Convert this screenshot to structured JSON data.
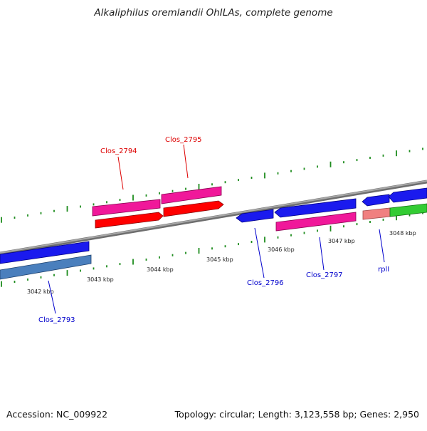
{
  "title": "Alkaliphilus oremlandii OhILAs, complete genome",
  "footer": {
    "accession": "Accession: NC_009922",
    "summary": "Topology: circular; Length: 3,123,558 bp; Genes: 2,950"
  },
  "colors": {
    "forward_red": "#ff0000",
    "forward_pink": "#f0189a",
    "reverse_blue": "#1a1aee",
    "steelblue": "#4a7fbd",
    "salmon": "#f08080",
    "green": "#33cc33",
    "backbone": "#808080",
    "tick": "#1e8c1e",
    "label_red": "#dd0000",
    "label_blue": "#0000cc"
  },
  "scale": {
    "labels": [
      "3042 kbp",
      "3043 kbp",
      "3044 kbp",
      "3045 kbp",
      "3046 kbp",
      "3047 kbp",
      "3048 kbp"
    ]
  },
  "genes": [
    {
      "label": "Clos_2793",
      "color": "label_blue"
    },
    {
      "label": "Clos_2794",
      "color": "label_red"
    },
    {
      "label": "Clos_2795",
      "color": "label_red"
    },
    {
      "label": "Clos_2796",
      "color": "label_blue"
    },
    {
      "label": "Clos_2797",
      "color": "label_blue"
    },
    {
      "label": "rplI",
      "color": "label_blue"
    }
  ]
}
